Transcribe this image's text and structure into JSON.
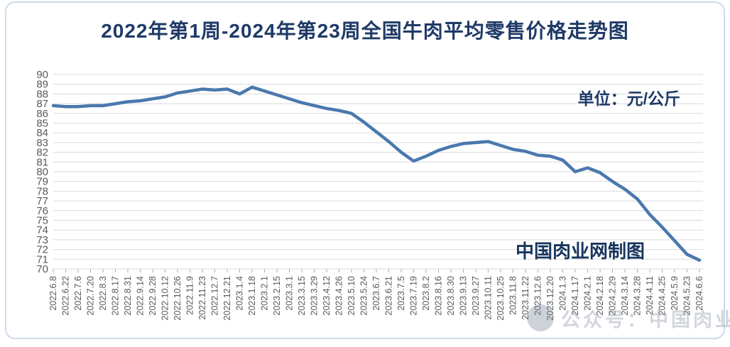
{
  "page": {
    "title": "2022年第1周-2024年第23周全国牛肉平均零售价格走势图",
    "unit_label": "单位：元/公斤",
    "credit_label": "中国肉业网制图",
    "watermark_text": "公众号：中国肉业网"
  },
  "colors": {
    "title_text": "#1f3a67",
    "line": "#4a78ae",
    "grid": "#d9d9d9",
    "axis_text": "#595959",
    "tick": "#b0b0b0",
    "card_border": "#cdd9ec",
    "watermark": "#8a94a4"
  },
  "chart_data": {
    "type": "line",
    "title": "2022年第1周-2024年第23周全国牛肉平均零售价格走势图",
    "unit": "元/公斤",
    "xlabel": "",
    "ylabel": "",
    "ylim": [
      70,
      90
    ],
    "ytick_step": 1,
    "grid": "horizontal",
    "legend": "none",
    "categories": [
      "2022.6.8",
      "2022.6.22",
      "2022.7.6",
      "2022.7.20",
      "2022.8.3",
      "2022.8.17",
      "2022.8.31",
      "2022.9.14",
      "2022.9.28",
      "2022.10.12",
      "2022.10.26",
      "2022.11.9",
      "2022.11.23",
      "2022.12.7",
      "2022.12.21",
      "2023.1.4",
      "2023.1.18",
      "2023.2.1",
      "2023.2.15",
      "2023.3.1",
      "2023.3.15",
      "2023.3.29",
      "2023.4.12",
      "2023.4.26",
      "2023.5.10",
      "2023.5.24",
      "2023.6.7",
      "2023.6.21",
      "2023.7.5",
      "2023.7.19",
      "2023.8.2",
      "2023.8.16",
      "2023.8.30",
      "2023.9.13",
      "2023.9.27",
      "2023.10.11",
      "2023.10.25",
      "2023.11.8",
      "2023.11.22",
      "2023.12.6",
      "2023.12.20",
      "2024.1.3",
      "2024.1.17",
      "2024.2.1",
      "2024.2.18",
      "2024.2.29",
      "2024.3.14",
      "2024.3.28",
      "2024.4.11",
      "2024.4.25",
      "2024.5.9",
      "2024.5.23",
      "2024.6.6"
    ],
    "series": [
      {
        "name": "全国牛肉平均零售价格",
        "values": [
          86.8,
          86.7,
          86.7,
          86.8,
          86.8,
          87.0,
          87.2,
          87.3,
          87.5,
          87.7,
          88.1,
          88.3,
          88.5,
          88.4,
          88.5,
          88.0,
          88.7,
          88.3,
          87.9,
          87.5,
          87.1,
          86.8,
          86.5,
          86.3,
          86.0,
          85.1,
          84.1,
          83.1,
          82.0,
          81.1,
          81.6,
          82.2,
          82.6,
          82.9,
          83.0,
          83.1,
          82.7,
          82.3,
          82.1,
          81.7,
          81.6,
          81.2,
          80.0,
          80.4,
          79.9,
          79.0,
          78.2,
          77.2,
          75.6,
          74.3,
          72.9,
          71.5,
          70.9
        ]
      }
    ]
  }
}
